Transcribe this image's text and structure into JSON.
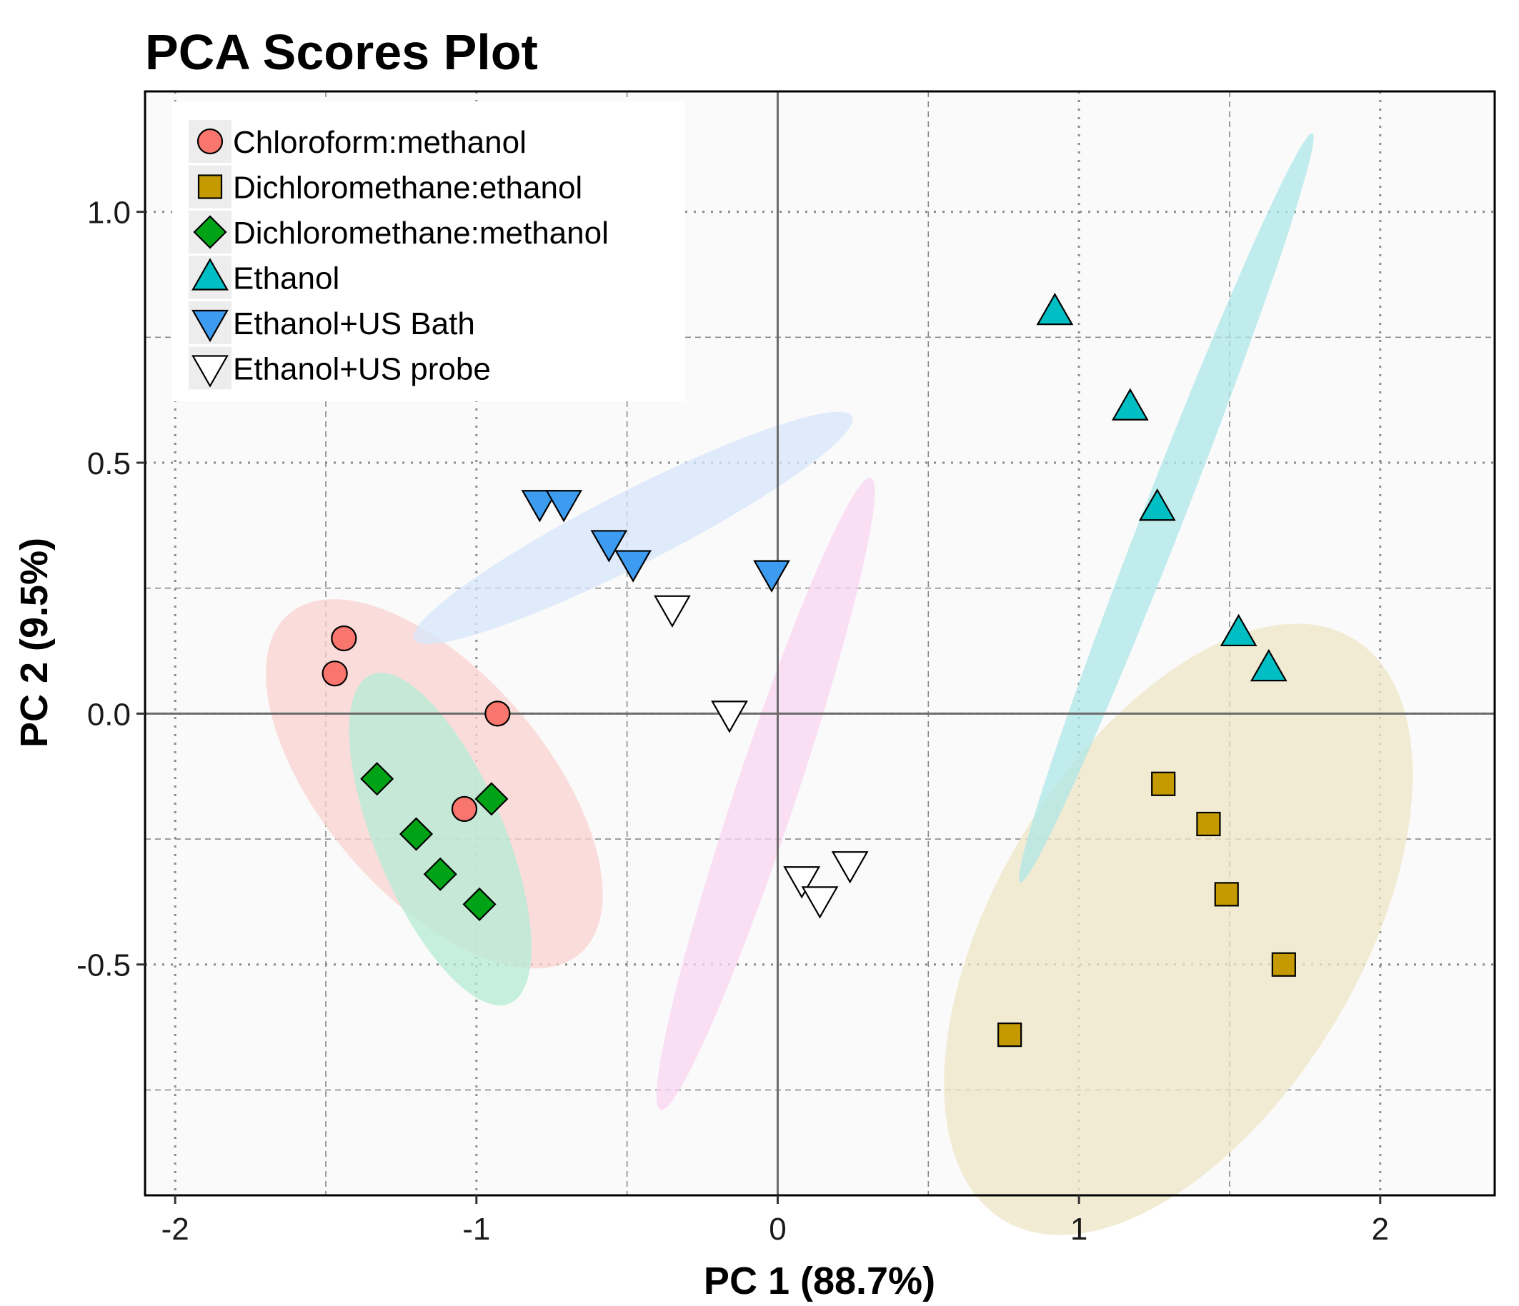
{
  "chart_data": {
    "type": "scatter",
    "title": "PCA Scores Plot",
    "xlabel": "PC 1 (88.7%)",
    "ylabel": "PC 2 (9.5%)",
    "xlim": [
      -2.1,
      2.38
    ],
    "ylim": [
      -0.96,
      1.24
    ],
    "x_ticks": [
      -2,
      -1,
      0,
      1,
      2
    ],
    "x_tick_labels": [
      "-2",
      "-1",
      "0",
      "1",
      "2"
    ],
    "y_ticks": [
      -0.5,
      0.0,
      0.5,
      1.0
    ],
    "y_tick_labels": [
      "-0.5",
      "0.0",
      "0.5",
      "1.0"
    ],
    "grid": true,
    "zero_lines": true,
    "legend_position": "top-left",
    "series": [
      {
        "name": "Chloroform:methanol",
        "marker": "circle",
        "color": "#F8766D",
        "ellipse_color": "#FAD3CF",
        "points": [
          [
            -1.44,
            0.15
          ],
          [
            -1.47,
            0.08
          ],
          [
            -0.93,
            0.0
          ],
          [
            -1.04,
            -0.19
          ]
        ],
        "ellipse": {
          "center": [
            -1.14,
            -0.14
          ],
          "semi_major": 0.59,
          "semi_minor": 0.25,
          "angle_deg": -35
        }
      },
      {
        "name": "Dichloromethane:ethanol",
        "marker": "square",
        "color": "#C49A00",
        "ellipse_color": "#EFE5C6",
        "points": [
          [
            1.28,
            -0.14
          ],
          [
            1.43,
            -0.22
          ],
          [
            1.49,
            -0.36
          ],
          [
            1.68,
            -0.5
          ],
          [
            0.77,
            -0.64
          ]
        ],
        "ellipse": {
          "center": [
            1.33,
            -0.43
          ],
          "semi_major": 0.82,
          "semi_minor": 0.44,
          "angle_deg": 45
        }
      },
      {
        "name": "Dichloromethane:methanol",
        "marker": "diamond",
        "color": "#00A316",
        "ellipse_color": "#B4EBD4",
        "points": [
          [
            -1.33,
            -0.13
          ],
          [
            -0.95,
            -0.17
          ],
          [
            -1.2,
            -0.24
          ],
          [
            -1.12,
            -0.32
          ],
          [
            -0.99,
            -0.38
          ]
        ],
        "ellipse": {
          "center": [
            -1.12,
            -0.25
          ],
          "semi_major": 0.4,
          "semi_minor": 0.17,
          "angle_deg": -55
        }
      },
      {
        "name": "Ethanol",
        "marker": "triangle-up",
        "color": "#00BFC4",
        "ellipse_color": "#AEE7E8",
        "points": [
          [
            0.92,
            0.8
          ],
          [
            1.17,
            0.61
          ],
          [
            1.26,
            0.41
          ],
          [
            1.53,
            0.16
          ],
          [
            1.63,
            0.09
          ]
        ],
        "ellipse": {
          "center": [
            1.29,
            0.41
          ],
          "semi_major": 0.89,
          "semi_minor": 0.055,
          "angle_deg": 57
        }
      },
      {
        "name": "Ethanol+US Bath",
        "marker": "triangle-down",
        "color": "#3D9CF0",
        "ellipse_color": "#D6E6FA",
        "points": [
          [
            -0.79,
            0.42
          ],
          [
            -0.71,
            0.42
          ],
          [
            -0.56,
            0.34
          ],
          [
            -0.48,
            0.3
          ],
          [
            -0.02,
            0.28
          ]
        ],
        "ellipse": {
          "center": [
            -0.48,
            0.37
          ],
          "semi_major": 0.76,
          "semi_minor": 0.075,
          "angle_deg": 17
        }
      },
      {
        "name": "Ethanol+US probe",
        "marker": "triangle-down",
        "color": "#FFFFFF",
        "ellipse_color": "#FAD4F0",
        "points": [
          [
            -0.35,
            0.21
          ],
          [
            -0.16,
            0.0
          ],
          [
            0.08,
            -0.33
          ],
          [
            0.14,
            -0.37
          ],
          [
            0.24,
            -0.3
          ]
        ],
        "ellipse": {
          "center": [
            -0.04,
            -0.16
          ],
          "semi_major": 0.72,
          "semi_minor": 0.085,
          "angle_deg": 61
        }
      }
    ]
  }
}
